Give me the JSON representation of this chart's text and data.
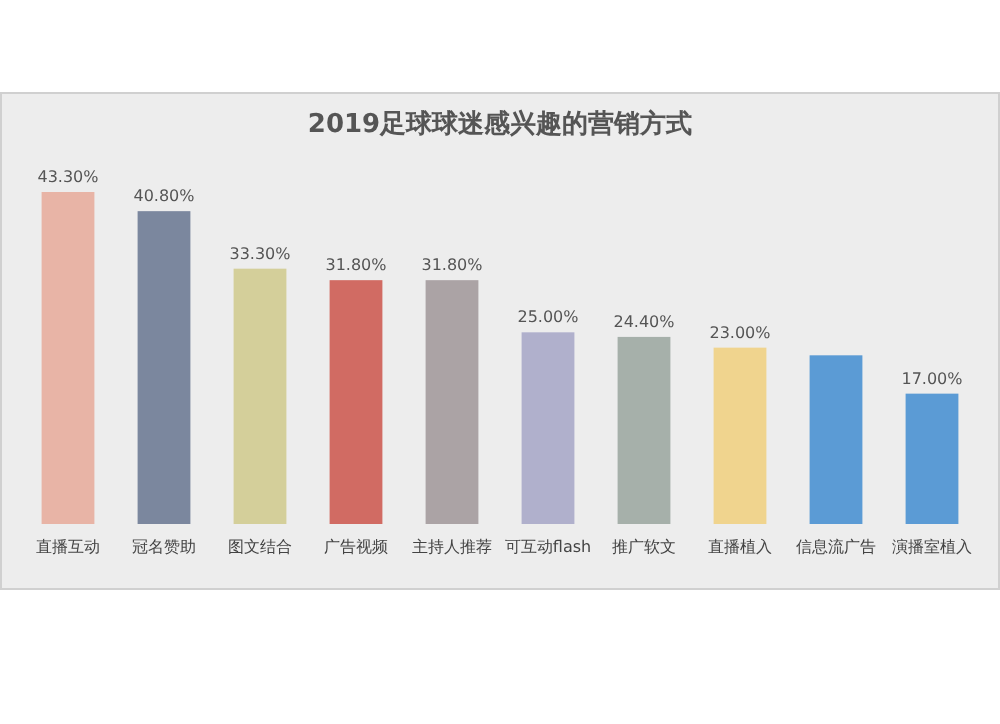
{
  "chart_data": {
    "type": "bar",
    "title": "2019足球球迷感兴趣的营销方式",
    "categories": [
      "直播互动",
      "冠名赞助",
      "图文结合",
      "广告视频",
      "主持人推荐",
      "可互动flash",
      "推广软文",
      "直播植入",
      "信息流广告",
      "演播室植入"
    ],
    "values": [
      43.3,
      40.8,
      33.3,
      31.8,
      31.8,
      25.0,
      24.4,
      23.0,
      22.0,
      17.0
    ],
    "colors": [
      "#e8b4a6",
      "#7b879e",
      "#d4cf9a",
      "#d16b63",
      "#aba3a5",
      "#b0b0cc",
      "#a6b0aa",
      "#f0d48e",
      "#5b9bd5",
      "#5b9bd5"
    ],
    "value_labels": [
      "43.30%",
      "40.80%",
      "33.30%",
      "31.80%",
      "31.80%",
      "25.00%",
      "24.40%",
      "23.00%",
      null,
      "17.00%"
    ]
  }
}
